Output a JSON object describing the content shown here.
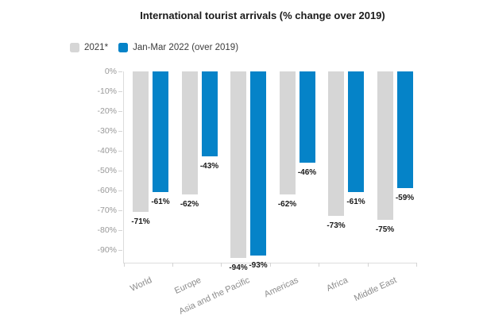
{
  "header": {
    "title": "International tourist arrivals (% change over 2019)"
  },
  "chart_data": {
    "type": "bar",
    "title": "International tourist arrivals (% change over 2019)",
    "categories": [
      "World",
      "Europe",
      "Asia and the Pacific",
      "Americas",
      "Africa",
      "Middle East"
    ],
    "series": [
      {
        "name": "2021*",
        "color": "#d6d6d6",
        "values": [
          -71,
          -62,
          -94,
          -62,
          -73,
          -75
        ]
      },
      {
        "name": "Jan-Mar 2022 (over 2019)",
        "color": "#0583c8",
        "values": [
          -61,
          -43,
          -93,
          -46,
          -61,
          -59
        ]
      }
    ],
    "xlabel": "",
    "ylabel": "",
    "ylim": [
      0,
      -96.5
    ],
    "yticks": [
      0,
      -10,
      -20,
      -30,
      -40,
      -50,
      -60,
      -70,
      -80,
      -90
    ],
    "ytick_suffix": "%",
    "data_labels": true,
    "grid": false,
    "legend_position": "top-left",
    "category_label_rotation_deg": -25,
    "colors": {
      "title_text": "#1b1b1b",
      "legend_text": "#3c3c3c",
      "axis_text": "#999999",
      "category_text": "#8c8c8c",
      "value_label_text": "#1a1a1a",
      "axis_line": "#dcdcdc",
      "background": "#ffffff"
    }
  }
}
